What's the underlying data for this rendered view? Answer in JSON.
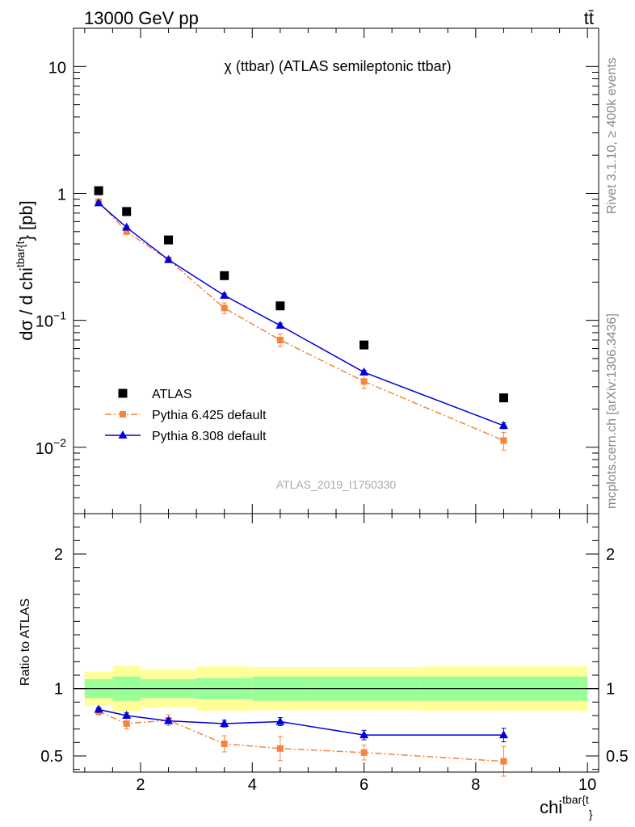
{
  "header": {
    "left_label": "13000 GeV pp",
    "right_label": "tt̄"
  },
  "side_text": {
    "rivet": "Rivet 3.1.10, ≥ 400k events",
    "mcplots": "mcplots.cern.ch [arXiv:1306.3436]"
  },
  "chart_data": [
    {
      "type": "scatter",
      "panel": "main",
      "title": "χ (ttbar) (ATLAS semileptonic ttbar)",
      "ylabel": "dσ / d chi^tbar{t}} [pb]",
      "ylabel_parts": {
        "prefix": "dσ / d chi",
        "sup": "tbar{t",
        "suffix": "} [pb]"
      },
      "yscale": "log",
      "ylim": [
        0.003,
        20
      ],
      "xlim": [
        0.8,
        10.2
      ],
      "ytick_labels": [
        {
          "value": 10,
          "label": "10"
        },
        {
          "value": 1,
          "label": "1"
        },
        {
          "value": 0.1,
          "base": "10",
          "exp": "−1"
        },
        {
          "value": 0.01,
          "base": "10",
          "exp": "−2"
        }
      ],
      "watermark": "ATLAS_2019_I1750330",
      "legend_placement": "bottom-left",
      "x": [
        1.25,
        1.75,
        2.5,
        3.5,
        4.5,
        6.0,
        8.5
      ],
      "bin_edges": [
        1,
        1.5,
        2,
        3,
        4,
        5,
        7,
        10
      ],
      "series": [
        {
          "name": "ATLAS",
          "color": "#000000",
          "marker": "square",
          "values": [
            1.05,
            0.72,
            0.43,
            0.225,
            0.13,
            0.064,
            0.0245
          ],
          "band_inner": [
            [
              0.93,
              1.07
            ],
            [
              0.91,
              1.09
            ],
            [
              0.93,
              1.07
            ],
            [
              0.92,
              1.08
            ],
            [
              0.91,
              1.09
            ],
            [
              0.91,
              1.09
            ],
            [
              0.91,
              1.09
            ]
          ],
          "band_outer": [
            [
              0.875,
              1.125
            ],
            [
              0.83,
              1.17
            ],
            [
              0.86,
              1.14
            ],
            [
              0.835,
              1.165
            ],
            [
              0.84,
              1.16
            ],
            [
              0.84,
              1.16
            ],
            [
              0.835,
              1.165
            ]
          ]
        },
        {
          "name": "Pythia 6.425 default",
          "color": "#f5843c",
          "marker": "square",
          "line": "dashdot",
          "values": [
            0.86,
            0.5,
            0.3,
            0.125,
            0.07,
            0.033,
            0.0113
          ],
          "err": [
            0.03,
            0.025,
            0.015,
            0.012,
            0.008,
            0.004,
            0.0018
          ]
        },
        {
          "name": "Pythia 8.308 default",
          "color": "#0000dd",
          "marker": "triangle",
          "line": "solid",
          "values": [
            0.84,
            0.54,
            0.3,
            0.157,
            0.091,
            0.039,
            0.0148
          ],
          "err": [
            0.02,
            0.015,
            0.01,
            0.006,
            0.004,
            0.0015,
            0.0008
          ]
        }
      ]
    },
    {
      "type": "line",
      "panel": "ratio",
      "ylabel": "Ratio to ATLAS",
      "xlabel": "chi^tbar{t}}",
      "xlabel_parts": {
        "prefix": "chi",
        "sup": "tbar{t",
        "sub": "}"
      },
      "ylim": [
        0.38,
        2.3
      ],
      "xlim": [
        0.8,
        10.2
      ],
      "xticks": [
        2,
        4,
        6,
        8,
        10
      ],
      "yticks": [
        0.5,
        1,
        2
      ],
      "x": [
        1.25,
        1.75,
        2.5,
        3.5,
        4.5,
        6.0,
        8.5
      ],
      "series": [
        {
          "name": "Pythia 6.425 default",
          "color": "#f5843c",
          "values": [
            0.83,
            0.74,
            0.765,
            0.59,
            0.555,
            0.525,
            0.46
          ],
          "err": [
            0.025,
            0.04,
            0.04,
            0.06,
            0.09,
            0.055,
            0.11
          ]
        },
        {
          "name": "Pythia 8.308 default",
          "color": "#0000dd",
          "values": [
            0.845,
            0.8,
            0.76,
            0.74,
            0.755,
            0.655,
            0.655
          ],
          "err": [
            0.015,
            0.02,
            0.02,
            0.025,
            0.03,
            0.035,
            0.05
          ]
        }
      ]
    }
  ]
}
